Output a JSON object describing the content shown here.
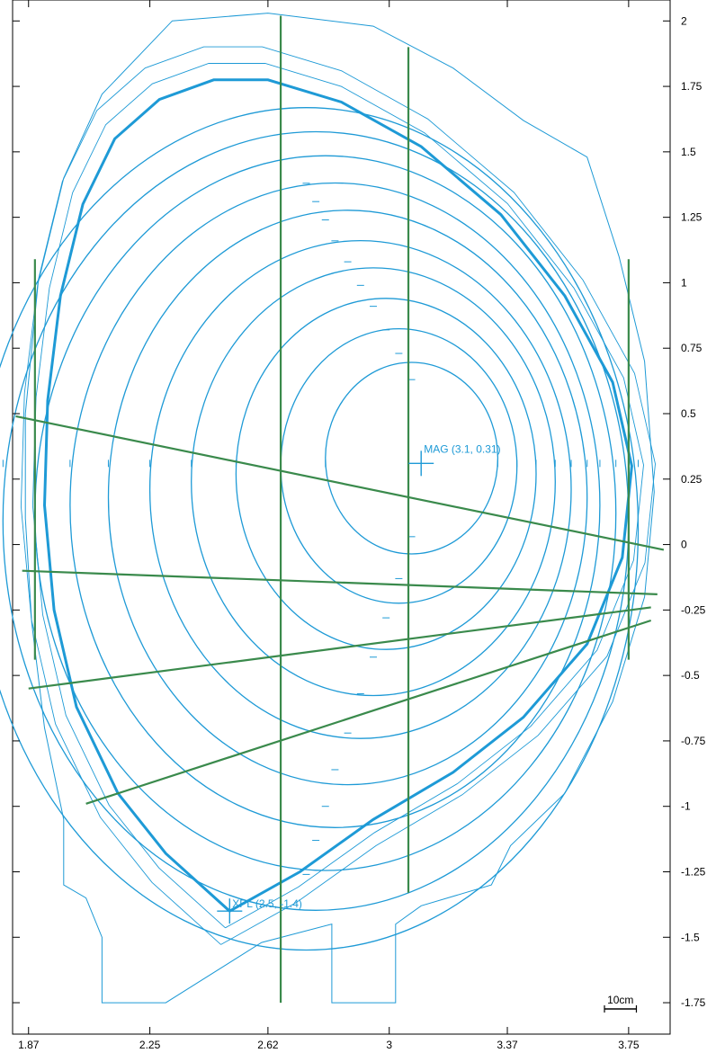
{
  "colors": {
    "flux": "#1e9ad6",
    "chord": "#3a8a4c",
    "frame": "#000000",
    "background": "#ffffff"
  },
  "chart_data": {
    "type": "scatter",
    "title": "",
    "xlabel": "",
    "ylabel": "",
    "xlim": [
      1.82,
      3.88
    ],
    "ylim": [
      -1.87,
      2.08
    ],
    "x_ticks": [
      {
        "value": 1.87,
        "label": "1.87"
      },
      {
        "value": 2.25,
        "label": "2.25"
      },
      {
        "value": 2.62,
        "label": "2.62"
      },
      {
        "value": 3.0,
        "label": "3"
      },
      {
        "value": 3.37,
        "label": "3.37"
      },
      {
        "value": 3.75,
        "label": "3.75"
      }
    ],
    "y_ticks": [
      {
        "value": 2.0,
        "label": "2"
      },
      {
        "value": 1.75,
        "label": "1.75"
      },
      {
        "value": 1.5,
        "label": "1.5"
      },
      {
        "value": 1.25,
        "label": "1.25"
      },
      {
        "value": 1.0,
        "label": "1"
      },
      {
        "value": 0.75,
        "label": "0.75"
      },
      {
        "value": 0.5,
        "label": "0.5"
      },
      {
        "value": 0.25,
        "label": "0.25"
      },
      {
        "value": 0.0,
        "label": "0"
      },
      {
        "value": -0.25,
        "label": "-0.25"
      },
      {
        "value": -0.5,
        "label": "-0.5"
      },
      {
        "value": -0.75,
        "label": "-0.75"
      },
      {
        "value": -1.0,
        "label": "-1"
      },
      {
        "value": -1.25,
        "label": "-1.25"
      },
      {
        "value": -1.5,
        "label": "-1.5"
      },
      {
        "value": -1.75,
        "label": "-1.75"
      }
    ],
    "magnetic_axis": {
      "r": 3.1,
      "z": 0.31,
      "label": "MAG (3.1, 0.31)"
    },
    "x_point": {
      "r": 2.5,
      "z": -1.4,
      "label": "XPL (2.5, -1.4)"
    },
    "scale_bar": {
      "label": "10cm",
      "length": 0.1
    },
    "separatrix": {
      "name": "",
      "points": [
        [
          2.5,
          -1.4
        ],
        [
          2.3,
          -1.18
        ],
        [
          2.15,
          -0.95
        ],
        [
          2.02,
          -0.62
        ],
        [
          1.95,
          -0.25
        ],
        [
          1.92,
          0.15
        ],
        [
          1.93,
          0.55
        ],
        [
          1.97,
          0.95
        ],
        [
          2.04,
          1.3
        ],
        [
          2.14,
          1.55
        ],
        [
          2.28,
          1.7
        ],
        [
          2.45,
          1.775
        ],
        [
          2.62,
          1.775
        ],
        [
          2.85,
          1.69
        ],
        [
          3.1,
          1.52
        ],
        [
          3.35,
          1.26
        ],
        [
          3.55,
          0.95
        ],
        [
          3.7,
          0.62
        ],
        [
          3.76,
          0.3
        ],
        [
          3.73,
          -0.05
        ],
        [
          3.62,
          -0.38
        ],
        [
          3.42,
          -0.66
        ],
        [
          3.2,
          -0.87
        ],
        [
          2.95,
          -1.05
        ],
        [
          2.72,
          -1.25
        ],
        [
          2.5,
          -1.4
        ]
      ]
    },
    "flux_surfaces": [
      {
        "center": [
          3.07,
          0.33
        ],
        "a": 0.27,
        "b": 0.3
      },
      {
        "center": [
          3.03,
          0.3
        ],
        "a": 0.37,
        "b": 0.43
      },
      {
        "center": [
          2.99,
          0.27
        ],
        "a": 0.47,
        "b": 0.55
      },
      {
        "center": [
          2.95,
          0.24
        ],
        "a": 0.57,
        "b": 0.67
      },
      {
        "center": [
          2.91,
          0.21
        ],
        "a": 0.66,
        "b": 0.78
      },
      {
        "center": [
          2.87,
          0.18
        ],
        "a": 0.75,
        "b": 0.9
      },
      {
        "center": [
          2.83,
          0.15
        ],
        "a": 0.83,
        "b": 1.01
      },
      {
        "center": [
          2.8,
          0.12
        ],
        "a": 0.91,
        "b": 1.12
      },
      {
        "center": [
          2.77,
          0.09
        ],
        "a": 0.98,
        "b": 1.22
      },
      {
        "center": [
          2.74,
          0.06
        ],
        "a": 1.04,
        "b": 1.32
      }
    ],
    "wall": {
      "points": [
        [
          2.32,
          2.0
        ],
        [
          2.62,
          2.03
        ],
        [
          2.95,
          1.98
        ],
        [
          3.2,
          1.82
        ],
        [
          3.42,
          1.62
        ],
        [
          3.62,
          1.48
        ],
        [
          3.72,
          1.1
        ],
        [
          3.8,
          0.7
        ],
        [
          3.83,
          0.2
        ],
        [
          3.8,
          -0.2
        ],
        [
          3.7,
          -0.6
        ],
        [
          3.55,
          -0.95
        ],
        [
          3.38,
          -1.15
        ],
        [
          3.32,
          -1.3
        ],
        [
          3.1,
          -1.38
        ],
        [
          3.02,
          -1.45
        ],
        [
          3.02,
          -1.75
        ],
        [
          2.82,
          -1.75
        ],
        [
          2.82,
          -1.45
        ],
        [
          2.6,
          -1.52
        ],
        [
          2.3,
          -1.75
        ],
        [
          2.1,
          -1.75
        ],
        [
          2.1,
          -1.5
        ],
        [
          2.05,
          -1.35
        ],
        [
          1.98,
          -1.3
        ],
        [
          1.98,
          -1.05
        ],
        [
          1.92,
          -0.7
        ],
        [
          1.88,
          -0.3
        ],
        [
          1.86,
          0.1
        ],
        [
          1.86,
          0.5
        ],
        [
          1.9,
          1.0
        ],
        [
          1.98,
          1.4
        ],
        [
          2.1,
          1.72
        ],
        [
          2.32,
          2.0
        ]
      ]
    },
    "chords": [
      {
        "x1": 1.83,
        "y1": 0.49,
        "x2": 3.86,
        "y2": -0.02
      },
      {
        "x1": 1.85,
        "y1": -0.1,
        "x2": 3.84,
        "y2": -0.19
      },
      {
        "x1": 1.87,
        "y1": -0.55,
        "x2": 3.82,
        "y2": -0.24
      },
      {
        "x1": 2.05,
        "y1": -0.99,
        "x2": 3.82,
        "y2": -0.29
      },
      {
        "x1": 2.66,
        "y1": 2.02,
        "x2": 2.66,
        "y2": -1.75
      },
      {
        "x1": 3.06,
        "y1": 1.9,
        "x2": 3.06,
        "y2": -1.33
      },
      {
        "x1": 1.89,
        "y1": 1.09,
        "x2": 1.89,
        "y2": -0.44
      },
      {
        "x1": 3.75,
        "y1": 1.09,
        "x2": 3.75,
        "y2": -0.44
      }
    ]
  }
}
